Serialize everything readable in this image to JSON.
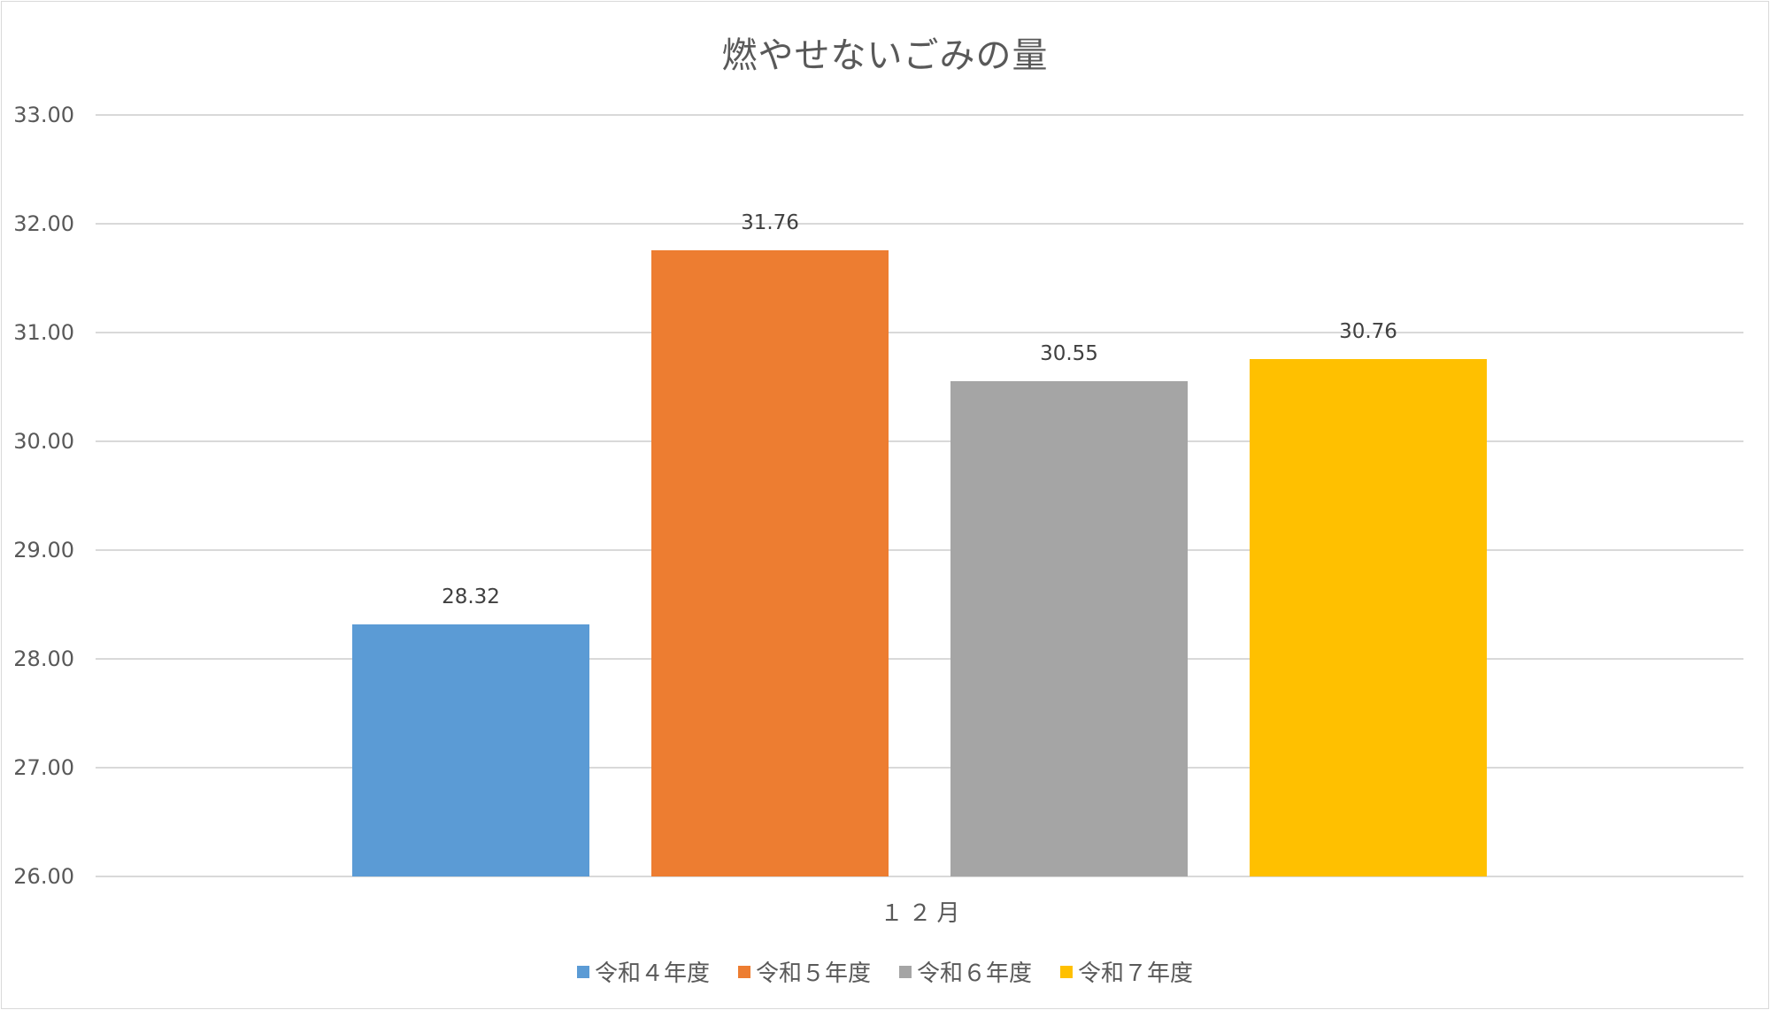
{
  "chart_data": {
    "type": "bar",
    "title": "燃やせないごみの量",
    "categories": [
      "１２月"
    ],
    "series": [
      {
        "name": "令和４年度",
        "values": [
          28.32
        ],
        "color": "#5b9bd5"
      },
      {
        "name": "令和５年度",
        "values": [
          31.76
        ],
        "color": "#ed7d31"
      },
      {
        "name": "令和６年度",
        "values": [
          30.55
        ],
        "color": "#a5a5a5"
      },
      {
        "name": "令和７年度",
        "values": [
          30.76
        ],
        "color": "#ffc000"
      }
    ],
    "xlabel": "",
    "ylabel": "",
    "ylim": [
      26,
      33
    ],
    "yticks": [
      "33.00",
      "32.00",
      "31.00",
      "30.00",
      "29.00",
      "28.00",
      "27.00",
      "26.00"
    ],
    "data_labels": [
      "28.32",
      "31.76",
      "30.55",
      "30.76"
    ],
    "grid": true,
    "legend_position": "bottom"
  }
}
